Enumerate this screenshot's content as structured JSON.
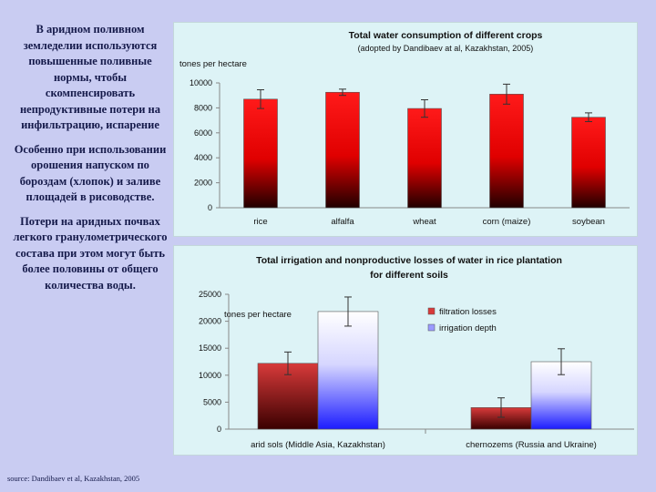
{
  "left_paragraphs": [
    "В аридном поливном земледелии используются повышенные поливные нормы, чтобы скомпенсировать непродуктивные потери на инфильтрацию, испарение",
    "Особенно при использовании орошения напуском по бороздам (хлопок) и заливе площадей в рисоводстве.",
    "Потери на аридных почвах легкого гранулометрического состава при этом могут быть более половины от общего количества воды."
  ],
  "source": "source: Dandibaev et al, Kazakhstan, 2005",
  "colors": {
    "bar_red": "#ff1a1a",
    "bar_red_dark": "#200000",
    "bar_blue": "#1c1cff",
    "bar_maroon": "#3a0000"
  },
  "chart_data": [
    {
      "type": "bar",
      "title": "Total water consumption of different crops",
      "subtitle": "(adopted by Dandibaev at al, Kazakhstan, 2005)",
      "ylabel": "tones per hectare",
      "xlabel": "",
      "categories": [
        "rice",
        "alfalfa",
        "wheat",
        "corn (maize)",
        "soybean"
      ],
      "values": [
        8700,
        9250,
        7950,
        9100,
        7250
      ],
      "errors": [
        750,
        250,
        700,
        800,
        350
      ],
      "ylim": [
        0,
        10000
      ],
      "yticks": [
        "0",
        "2000",
        "4000",
        "6000",
        "8000",
        "10000"
      ],
      "grid": false,
      "legend": "none"
    },
    {
      "type": "bar",
      "title": "Total irrigation and  nonproductive  losses of water in rice  plantation",
      "subtitle": "for  different  soils",
      "ylabel": "tones per hectare",
      "xlabel": "",
      "categories": [
        "arid sols (Middle Asia, Kazakhstan)",
        "chernozems (Russia and Ukraine)"
      ],
      "series": [
        {
          "name": "filtration losses",
          "values": [
            12200,
            4000
          ],
          "errors": [
            2100,
            1800
          ]
        },
        {
          "name": "irrigation depth",
          "values": [
            21800,
            12500
          ],
          "errors": [
            2700,
            2400
          ]
        }
      ],
      "ylim": [
        0,
        25000
      ],
      "yticks": [
        "0",
        "5000",
        "10000",
        "15000",
        "20000",
        "25000"
      ],
      "grid": false,
      "legend": "top-right"
    }
  ]
}
